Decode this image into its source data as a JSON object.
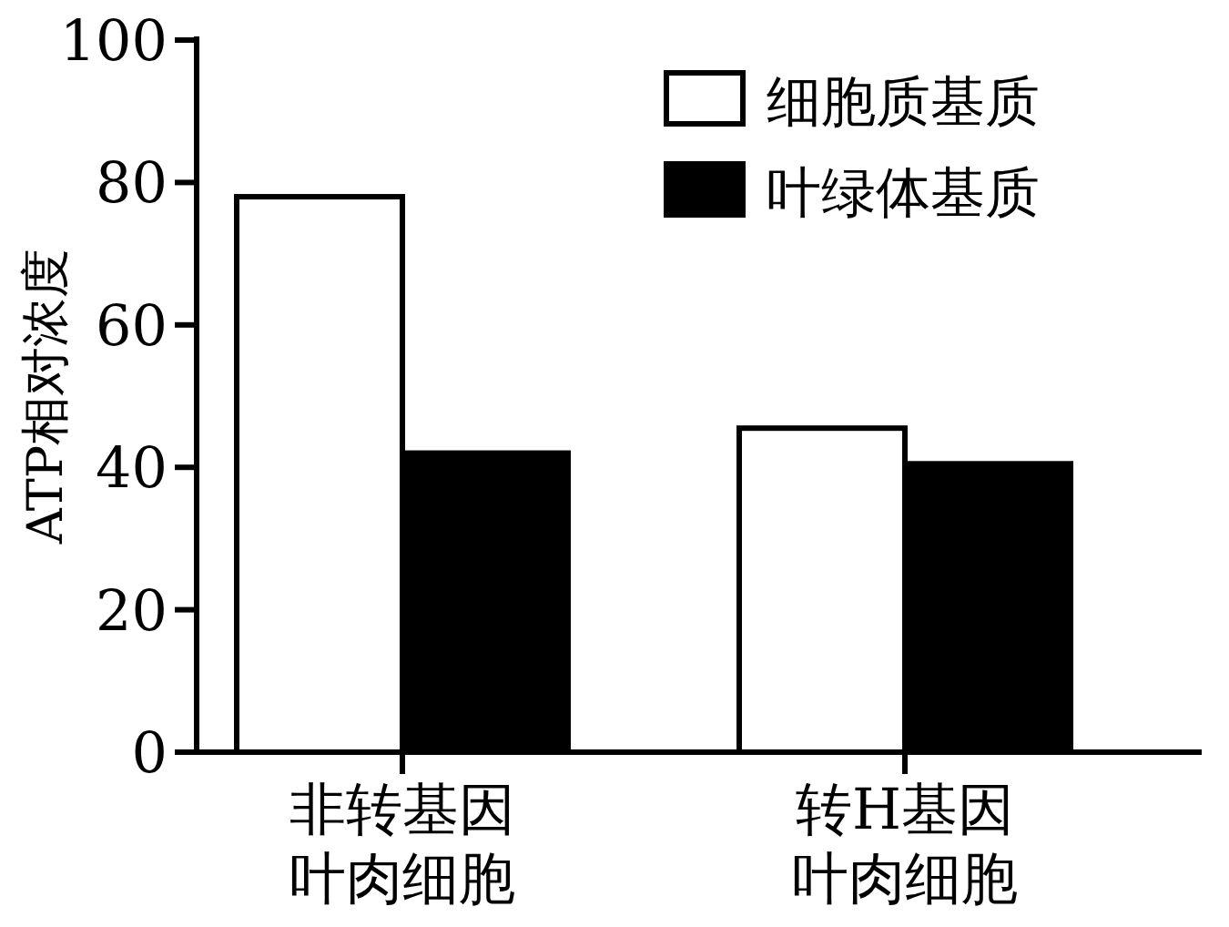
{
  "chart_data": {
    "type": "bar",
    "ylabel": "ATP相对浓度",
    "categories": [
      "非转基因叶肉细胞",
      "转H基因叶肉细胞"
    ],
    "series": [
      {
        "name": "细胞质基质",
        "color": "#ffffff",
        "values": [
          78,
          45.5
        ]
      },
      {
        "name": "叶绿体基质",
        "color": "#000000",
        "values": [
          42,
          40.5
        ]
      }
    ],
    "ylim": [
      0,
      100
    ],
    "yticks": [
      0,
      20,
      40,
      60,
      80,
      100
    ],
    "grid": false,
    "legend": "top right"
  }
}
